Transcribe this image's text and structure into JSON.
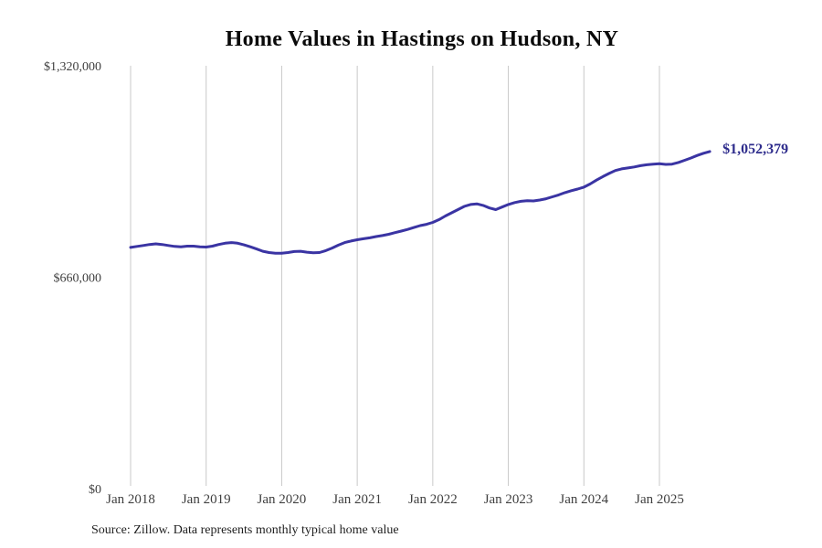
{
  "title": "Home Values in Hastings on Hudson, NY",
  "source_note": "Source: Zillow. Data represents monthly typical home value",
  "colors": {
    "background": "#ffffff",
    "line": "#3a34a3",
    "end_label": "#2e2c8c",
    "grid": "#c8c8c8",
    "axis_text": "#3f3f3f",
    "title_text": "#0a0a0a",
    "footer_text": "#1f1f1f"
  },
  "chart_data": {
    "type": "line",
    "title": "Home Values in Hastings on Hudson, NY",
    "xlabel": "",
    "ylabel": "",
    "ylim": [
      0,
      1320000
    ],
    "grid": "vertical-only",
    "legend_position": "none",
    "start_month": "2018-01",
    "end_month": "2025-09",
    "x_ticks": [
      {
        "month_index": 0,
        "label": "Jan 2018"
      },
      {
        "month_index": 12,
        "label": "Jan 2019"
      },
      {
        "month_index": 24,
        "label": "Jan 2020"
      },
      {
        "month_index": 36,
        "label": "Jan 2021"
      },
      {
        "month_index": 48,
        "label": "Jan 2022"
      },
      {
        "month_index": 60,
        "label": "Jan 2023"
      },
      {
        "month_index": 72,
        "label": "Jan 2024"
      },
      {
        "month_index": 84,
        "label": "Jan 2025"
      }
    ],
    "y_ticks": [
      {
        "value": 0,
        "label": "$0"
      },
      {
        "value": 660000,
        "label": "$660,000"
      },
      {
        "value": 1320000,
        "label": "$1,320,000"
      }
    ],
    "series": [
      {
        "name": "Monthly typical home value",
        "monthly_values": [
          753000,
          756000,
          759000,
          762000,
          764000,
          762000,
          759000,
          756000,
          755000,
          757000,
          757000,
          755000,
          754000,
          757000,
          762000,
          766000,
          768000,
          766000,
          761000,
          755000,
          748000,
          741000,
          737000,
          735000,
          735000,
          737000,
          740000,
          741000,
          738000,
          736000,
          737000,
          743000,
          751000,
          760000,
          768000,
          773000,
          777000,
          780000,
          783000,
          787000,
          790000,
          794000,
          799000,
          804000,
          809000,
          815000,
          821000,
          825000,
          831000,
          840000,
          851000,
          861000,
          871000,
          881000,
          887000,
          889000,
          884000,
          876000,
          871000,
          879000,
          887000,
          893000,
          897000,
          899000,
          898000,
          901000,
          905000,
          911000,
          917000,
          924000,
          930000,
          935000,
          941000,
          951000,
          963000,
          974000,
          984000,
          993000,
          998000,
          1001000,
          1004000,
          1008000,
          1011000,
          1013000,
          1014000,
          1012000,
          1013000,
          1018000,
          1025000,
          1032000,
          1040000,
          1047000,
          1052379
        ]
      }
    ],
    "final_value": 1052379,
    "final_value_label": "$1,052,379"
  }
}
